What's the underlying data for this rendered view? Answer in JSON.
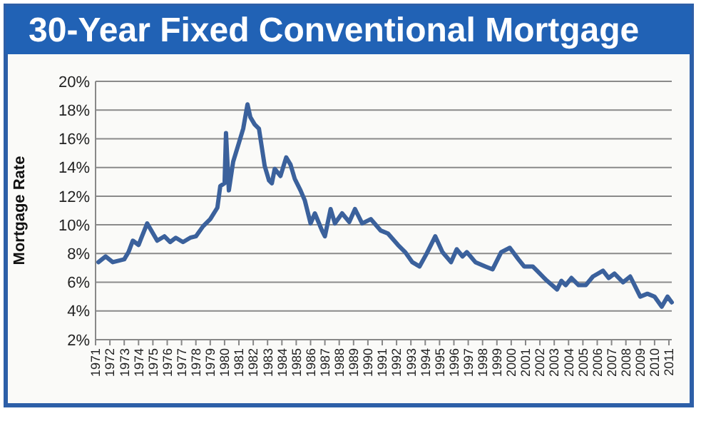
{
  "chart_data": {
    "type": "line",
    "title": "30-Year Fixed Conventional Mortgage",
    "ylabel": "Mortgage Rate",
    "x": [
      1971.2,
      1971.7,
      1972.2,
      1973.0,
      1973.3,
      1973.6,
      1974.0,
      1974.2,
      1974.6,
      1975.3,
      1975.8,
      1976.2,
      1976.6,
      1977.1,
      1977.6,
      1978.0,
      1978.5,
      1979.0,
      1979.5,
      1979.7,
      1980.0,
      1980.1,
      1980.3,
      1980.6,
      1981.0,
      1981.3,
      1981.6,
      1981.8,
      1982.1,
      1982.4,
      1982.8,
      1983.1,
      1983.3,
      1983.5,
      1983.9,
      1984.3,
      1984.6,
      1984.9,
      1985.3,
      1985.6,
      1986.0,
      1986.3,
      1986.8,
      1987.0,
      1987.4,
      1987.7,
      1988.2,
      1988.7,
      1989.1,
      1989.6,
      1990.2,
      1990.9,
      1991.4,
      1992.1,
      1992.6,
      1993.1,
      1993.6,
      1994.1,
      1994.7,
      1995.2,
      1995.8,
      1996.2,
      1996.6,
      1996.9,
      1997.5,
      1998.2,
      1998.7,
      1999.3,
      1999.9,
      2000.5,
      2000.9,
      2001.5,
      2001.8,
      2002.5,
      2003.2,
      2003.5,
      2003.8,
      2004.2,
      2004.7,
      2005.2,
      2005.7,
      2006.4,
      2006.8,
      2007.2,
      2007.8,
      2008.3,
      2009.0,
      2009.5,
      2010.0,
      2010.5,
      2010.9,
      2011.2
    ],
    "series": [
      {
        "color": "#3b619c",
        "values": [
          7.4,
          7.8,
          7.4,
          7.6,
          8.1,
          8.9,
          8.6,
          9.1,
          10.1,
          8.9,
          9.2,
          8.8,
          9.1,
          8.8,
          9.1,
          9.2,
          9.9,
          10.4,
          11.2,
          12.7,
          12.9,
          16.4,
          12.4,
          14.4,
          15.7,
          16.7,
          18.4,
          17.5,
          17.0,
          16.7,
          14.1,
          13.1,
          12.9,
          13.9,
          13.4,
          14.7,
          14.2,
          13.2,
          12.4,
          11.7,
          10.1,
          10.8,
          9.6,
          9.2,
          11.1,
          10.1,
          10.8,
          10.2,
          11.1,
          10.1,
          10.4,
          9.6,
          9.4,
          8.6,
          8.1,
          7.4,
          7.1,
          8.0,
          9.2,
          8.1,
          7.4,
          8.3,
          7.8,
          8.1,
          7.4,
          7.1,
          6.9,
          8.1,
          8.4,
          7.6,
          7.1,
          7.1,
          6.8,
          6.1,
          5.5,
          6.1,
          5.8,
          6.3,
          5.8,
          5.8,
          6.4,
          6.8,
          6.3,
          6.6,
          6.0,
          6.4,
          5.0,
          5.2,
          5.0,
          4.3,
          5.0,
          4.6
        ]
      }
    ],
    "xlim": [
      1971,
      2011.2
    ],
    "xticks": [
      1971,
      1972,
      1973,
      1974,
      1975,
      1976,
      1977,
      1978,
      1979,
      1980,
      1981,
      1982,
      1983,
      1984,
      1985,
      1986,
      1987,
      1988,
      1989,
      1990,
      1991,
      1992,
      1993,
      1994,
      1995,
      1996,
      1997,
      1998,
      1999,
      2000,
      2001,
      2002,
      2003,
      2004,
      2005,
      2006,
      2007,
      2008,
      2009,
      2010,
      2011
    ],
    "ylim": [
      2,
      20
    ],
    "yticks": [
      {
        "value": 2,
        "label": "2%"
      },
      {
        "value": 4,
        "label": "4%"
      },
      {
        "value": 6,
        "label": "6%"
      },
      {
        "value": 8,
        "label": "8%"
      },
      {
        "value": 10,
        "label": "10%"
      },
      {
        "value": 12,
        "label": "12%"
      },
      {
        "value": 14,
        "label": "14%"
      },
      {
        "value": 16,
        "label": "16%"
      },
      {
        "value": 18,
        "label": "18%"
      },
      {
        "value": 20,
        "label": "20%"
      }
    ],
    "grid": "y",
    "marker": "none",
    "line_style": "solid"
  }
}
